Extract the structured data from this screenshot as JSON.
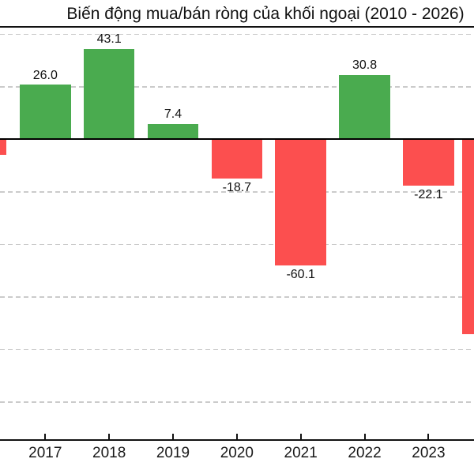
{
  "chart_data": {
    "type": "bar",
    "title": "Biến động mua/bán ròng của khối ngoại (2010 - 2026)",
    "categories": [
      "2017",
      "2018",
      "2019",
      "2020",
      "2021",
      "2022",
      "2023"
    ],
    "values": [
      26.0,
      43.1,
      7.4,
      -18.7,
      -60.1,
      30.8,
      -22.1
    ],
    "bar_labels": [
      "26.0",
      "43.1",
      "7.4",
      "-18.7",
      "-60.1",
      "30.8",
      "-22.1"
    ],
    "partial_bars": [
      {
        "position": "left-edge",
        "value_estimate": -7.3,
        "label_visible": false
      },
      {
        "position": "right-edge",
        "value_estimate": -92.6,
        "label_visible": false
      }
    ],
    "gridline_values": [
      50,
      25,
      0,
      -25,
      -50,
      -75,
      -100,
      -125
    ],
    "grid": "horizontal-dashed",
    "legend_position": "none",
    "colors": {
      "positive": "#4aab4f",
      "negative": "#fc4f4f",
      "gridline": "#cbcbcb",
      "axis": "#111111",
      "text": "#111111"
    }
  }
}
